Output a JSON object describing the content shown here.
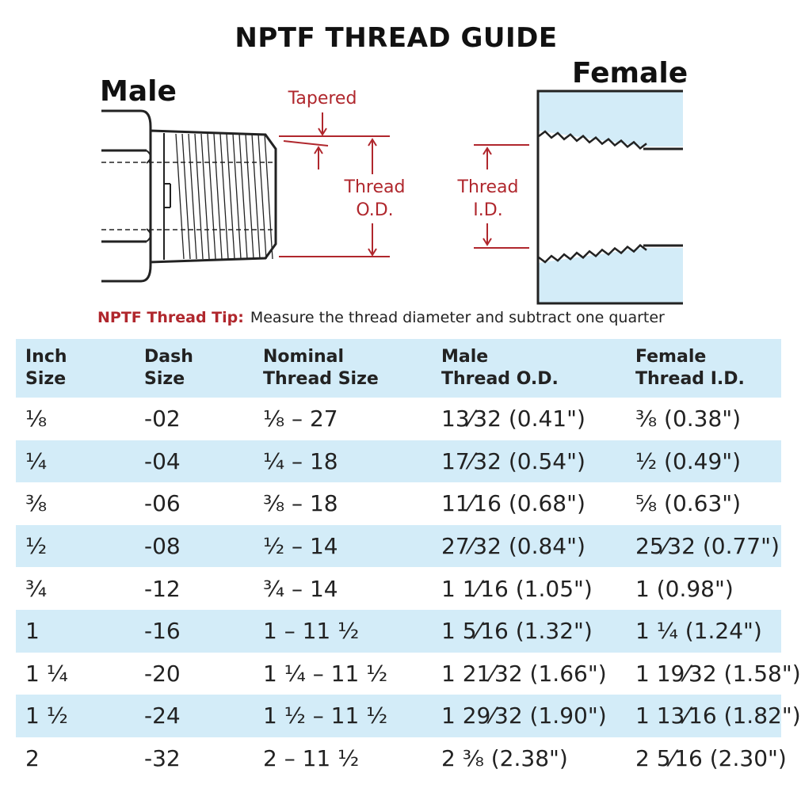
{
  "title": "NPTF THREAD GUIDE",
  "diagram": {
    "male_label": "Male",
    "female_label": "Female",
    "tapered_label": "Tapered",
    "thread_od_label": [
      "Thread",
      "O.D."
    ],
    "thread_id_label": [
      "Thread",
      "I.D."
    ],
    "colors": {
      "annotation": "#b0272d",
      "female_fill": "#d3ecf8",
      "outline": "#222222"
    }
  },
  "tip": {
    "lead": "NPTF Thread Tip:",
    "text": "Measure the thread diameter and subtract one quarter"
  },
  "table": {
    "headers": [
      [
        "Inch",
        "Size"
      ],
      [
        "Dash",
        "Size"
      ],
      [
        "Nominal",
        "Thread Size"
      ],
      [
        "Male",
        "Thread O.D."
      ],
      [
        "Female",
        "Thread I.D."
      ]
    ],
    "rows": [
      [
        "⅛",
        "-02",
        "⅛ – 27",
        "13⁄32 (0.41\")",
        "⅜ (0.38\")"
      ],
      [
        "¼",
        "-04",
        "¼ – 18",
        "17⁄32 (0.54\")",
        "½ (0.49\")"
      ],
      [
        "⅜",
        "-06",
        "⅜ – 18",
        "11⁄16 (0.68\")",
        "⅝ (0.63\")"
      ],
      [
        "½",
        "-08",
        "½ – 14",
        "27⁄32 (0.84\")",
        "25⁄32 (0.77\")"
      ],
      [
        "¾",
        "-12",
        "¾ – 14",
        "1 1⁄16 (1.05\")",
        "1 (0.98\")"
      ],
      [
        "1",
        "-16",
        "1 – 11 ½",
        "1 5⁄16 (1.32\")",
        "1 ¼ (1.24\")"
      ],
      [
        "1 ¼",
        "-20",
        "1 ¼ – 11 ½",
        "1 21⁄32 (1.66\")",
        "1 19⁄32 (1.58\")"
      ],
      [
        "1 ½",
        "-24",
        "1 ½ – 11 ½",
        "1 29⁄32 (1.90\")",
        "1 13⁄16 (1.82\")"
      ],
      [
        "2",
        "-32",
        "2 – 11 ½",
        "2 ⅜ (2.38\")",
        "2 5⁄16 (2.30\")"
      ]
    ],
    "colors": {
      "stripe": "#d3ecf8",
      "text": "#222222"
    }
  }
}
